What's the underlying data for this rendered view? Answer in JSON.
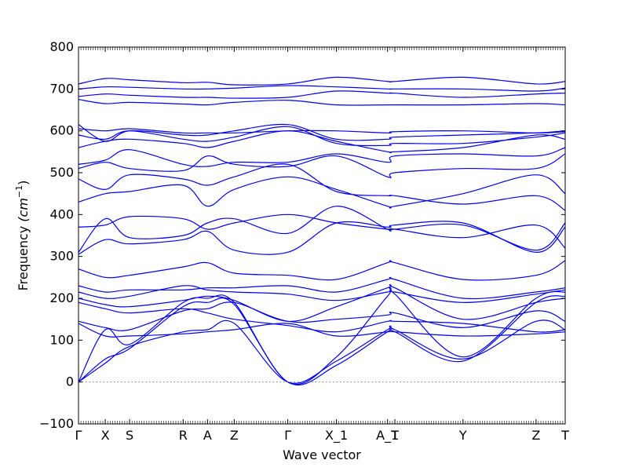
{
  "chart_data": {
    "type": "line",
    "xlabel": "Wave vector",
    "ylabel": "Frequency",
    "ylabel_unit": "(cm",
    "ylabel_unit_exp": "−1",
    "ylabel_unit_close": ")",
    "ylim": [
      -100,
      800
    ],
    "xlim": [
      0,
      20
    ],
    "yticks": [
      -100,
      0,
      100,
      200,
      300,
      400,
      500,
      600,
      700,
      800
    ],
    "ytick_labels": [
      "−100",
      "0",
      "100",
      "200",
      "300",
      "400",
      "500",
      "600",
      "700",
      "800"
    ],
    "high_symmetry_points": [
      {
        "label": "Γ",
        "x": 0
      },
      {
        "label": "X",
        "x": 1.1
      },
      {
        "label": "S",
        "x": 2.1
      },
      {
        "label": "R",
        "x": 4.3
      },
      {
        "label": "A",
        "x": 5.3
      },
      {
        "label": "Z",
        "x": 6.4
      },
      {
        "label": "Γ",
        "x": 8.6
      },
      {
        "label": "X_1",
        "x": 10.6
      },
      {
        "label": "A_1",
        "x": 12.7
      },
      {
        "label": "T",
        "x": 13.0
      },
      {
        "label": "Y",
        "x": 15.8
      },
      {
        "label": "Z",
        "x": 18.8
      },
      {
        "label": "T",
        "x": 20
      }
    ],
    "reference_line": 0,
    "grid": false,
    "series": [
      {
        "x": [
          0,
          1.1,
          2.1,
          4.3,
          5.3,
          6.4,
          8.6,
          10.6,
          12.7,
          13.0,
          15.8,
          18.8,
          20
        ],
        "y": [
          0,
          55,
          80,
          180,
          190,
          185,
          0,
          40,
          120,
          120,
          50,
          190,
          205
        ]
      },
      {
        "x": [
          0,
          1.1,
          2.1,
          4.3,
          5.3,
          6.4,
          8.6,
          10.6,
          12.7,
          13.0,
          15.8,
          18.8,
          20
        ],
        "y": [
          0,
          45,
          85,
          120,
          125,
          140,
          0,
          50,
          125,
          125,
          55,
          145,
          125
        ]
      },
      {
        "x": [
          0,
          1.1,
          2.1,
          4.3,
          5.3,
          6.4,
          8.6,
          10.6,
          12.7,
          13.0,
          15.8,
          18.8,
          20
        ],
        "y": [
          0,
          125,
          90,
          190,
          200,
          190,
          0,
          60,
          205,
          210,
          60,
          200,
          215
        ]
      },
      {
        "x": [
          0,
          1.1,
          2.1,
          4.3,
          5.3,
          6.4,
          8.6,
          10.6,
          12.7,
          13.0,
          15.8,
          18.8,
          20
        ],
        "y": [
          140,
          110,
          110,
          115,
          120,
          125,
          140,
          110,
          120,
          120,
          110,
          115,
          120
        ]
      },
      {
        "x": [
          0,
          1.1,
          2.1,
          4.3,
          5.3,
          6.4,
          8.6,
          10.6,
          12.7,
          13.0,
          15.8,
          18.8,
          20
        ],
        "y": [
          145,
          130,
          125,
          170,
          175,
          190,
          145,
          150,
          160,
          165,
          130,
          170,
          145
        ]
      },
      {
        "x": [
          0,
          1.1,
          2.1,
          4.3,
          5.3,
          6.4,
          8.6,
          10.6,
          12.7,
          13.0,
          15.8,
          18.8,
          20
        ],
        "y": [
          190,
          175,
          165,
          175,
          165,
          150,
          135,
          120,
          145,
          145,
          140,
          120,
          125
        ]
      },
      {
        "x": [
          0,
          1.1,
          2.1,
          4.3,
          5.3,
          6.4,
          8.6,
          10.6,
          12.7,
          13.0,
          15.8,
          18.8,
          20
        ],
        "y": [
          200,
          185,
          180,
          195,
          205,
          195,
          145,
          180,
          225,
          225,
          150,
          190,
          200
        ]
      },
      {
        "x": [
          0,
          1.1,
          2.1,
          4.3,
          5.3,
          6.4,
          8.6,
          10.6,
          12.7,
          13.0,
          15.8,
          18.8,
          20
        ],
        "y": [
          215,
          200,
          205,
          230,
          220,
          215,
          210,
          195,
          215,
          215,
          190,
          210,
          220
        ]
      },
      {
        "x": [
          0,
          1.1,
          2.1,
          4.3,
          5.3,
          6.4,
          8.6,
          10.6,
          12.7,
          13.0,
          15.8,
          18.8,
          20
        ],
        "y": [
          230,
          215,
          220,
          220,
          225,
          225,
          230,
          215,
          245,
          245,
          200,
          215,
          225
        ]
      },
      {
        "x": [
          0,
          1.1,
          2.1,
          4.3,
          5.3,
          6.4,
          8.6,
          10.6,
          12.7,
          13.0,
          15.8,
          18.8,
          20
        ],
        "y": [
          270,
          250,
          255,
          275,
          285,
          260,
          255,
          245,
          285,
          285,
          245,
          255,
          290
        ]
      },
      {
        "x": [
          0,
          1.1,
          2.1,
          4.3,
          5.3,
          6.4,
          8.6,
          10.6,
          12.7,
          13.0,
          15.8,
          18.8,
          20
        ],
        "y": [
          305,
          340,
          330,
          340,
          360,
          315,
          310,
          380,
          370,
          375,
          380,
          310,
          370
        ]
      },
      {
        "x": [
          0,
          1.1,
          2.1,
          4.3,
          5.3,
          6.4,
          8.6,
          10.6,
          12.7,
          13.0,
          15.8,
          18.8,
          20
        ],
        "y": [
          310,
          390,
          345,
          350,
          380,
          390,
          355,
          420,
          365,
          365,
          375,
          315,
          380
        ]
      },
      {
        "x": [
          0,
          1.1,
          2.1,
          4.3,
          5.3,
          6.4,
          8.6,
          10.6,
          12.7,
          13.0,
          15.8,
          18.8,
          20
        ],
        "y": [
          370,
          375,
          395,
          390,
          365,
          380,
          400,
          380,
          365,
          365,
          345,
          375,
          320
        ]
      },
      {
        "x": [
          0,
          1.1,
          2.1,
          4.3,
          5.3,
          6.4,
          8.6,
          10.6,
          12.7,
          13.0,
          15.8,
          18.8,
          20
        ],
        "y": [
          430,
          450,
          455,
          470,
          420,
          460,
          490,
          460,
          420,
          420,
          450,
          495,
          450
        ]
      },
      {
        "x": [
          0,
          1.1,
          2.1,
          4.3,
          5.3,
          6.4,
          8.6,
          10.6,
          12.7,
          13.0,
          15.8,
          18.8,
          20
        ],
        "y": [
          485,
          460,
          495,
          485,
          470,
          490,
          520,
          455,
          445,
          445,
          425,
          445,
          410
        ]
      },
      {
        "x": [
          0,
          1.1,
          2.1,
          4.3,
          5.3,
          6.4,
          8.6,
          10.6,
          12.7,
          13.0,
          15.8,
          18.8,
          20
        ],
        "y": [
          510,
          525,
          510,
          505,
          540,
          520,
          515,
          540,
          490,
          500,
          510,
          510,
          545
        ]
      },
      {
        "x": [
          0,
          1.1,
          2.1,
          4.3,
          5.3,
          6.4,
          8.6,
          10.6,
          12.7,
          13.0,
          15.8,
          18.8,
          20
        ],
        "y": [
          520,
          530,
          555,
          520,
          515,
          525,
          525,
          545,
          525,
          540,
          545,
          540,
          560
        ]
      },
      {
        "x": [
          0,
          1.1,
          2.1,
          4.3,
          5.3,
          6.4,
          8.6,
          10.6,
          12.7,
          13.0,
          15.8,
          18.8,
          20
        ],
        "y": [
          560,
          575,
          580,
          570,
          560,
          575,
          600,
          575,
          550,
          550,
          560,
          590,
          580
        ]
      },
      {
        "x": [
          0,
          1.1,
          2.1,
          4.3,
          5.3,
          6.4,
          8.6,
          10.6,
          12.7,
          13.0,
          15.8,
          18.8,
          20
        ],
        "y": [
          590,
          580,
          600,
          580,
          575,
          585,
          610,
          570,
          565,
          570,
          570,
          585,
          595
        ]
      },
      {
        "x": [
          0,
          1.1,
          2.1,
          4.3,
          5.3,
          6.4,
          8.6,
          10.6,
          12.7,
          13.0,
          15.8,
          18.8,
          20
        ],
        "y": [
          605,
          600,
          605,
          595,
          595,
          595,
          600,
          600,
          595,
          598,
          600,
          595,
          598
        ]
      },
      {
        "x": [
          0,
          1.1,
          2.1,
          4.3,
          5.3,
          6.4,
          8.6,
          10.6,
          12.7,
          13.0,
          15.8,
          18.8,
          20
        ],
        "y": [
          615,
          575,
          600,
          590,
          590,
          600,
          615,
          580,
          580,
          585,
          590,
          595,
          600
        ]
      },
      {
        "x": [
          0,
          1.1,
          2.1,
          4.3,
          5.3,
          6.4,
          8.6,
          10.6,
          12.7,
          13.0,
          15.8,
          18.8,
          20
        ],
        "y": [
          675,
          665,
          668,
          664,
          662,
          668,
          673,
          662,
          662,
          662,
          662,
          665,
          662
        ]
      },
      {
        "x": [
          0,
          1.1,
          2.1,
          4.3,
          5.3,
          6.4,
          8.6,
          10.6,
          12.7,
          13.0,
          15.8,
          18.8,
          20
        ],
        "y": [
          682,
          688,
          685,
          680,
          680,
          678,
          680,
          695,
          690,
          690,
          680,
          688,
          690
        ]
      },
      {
        "x": [
          0,
          1.1,
          2.1,
          4.3,
          5.3,
          6.4,
          8.6,
          10.6,
          12.7,
          13.0,
          15.8,
          18.8,
          20
        ],
        "y": [
          700,
          705,
          704,
          700,
          700,
          702,
          708,
          705,
          700,
          700,
          700,
          695,
          702
        ]
      },
      {
        "x": [
          0,
          1.1,
          2.1,
          4.3,
          5.3,
          6.4,
          8.6,
          10.6,
          12.7,
          13.0,
          15.8,
          18.8,
          20
        ],
        "y": [
          712,
          725,
          722,
          715,
          716,
          710,
          712,
          728,
          718,
          718,
          728,
          712,
          718
        ]
      }
    ]
  }
}
